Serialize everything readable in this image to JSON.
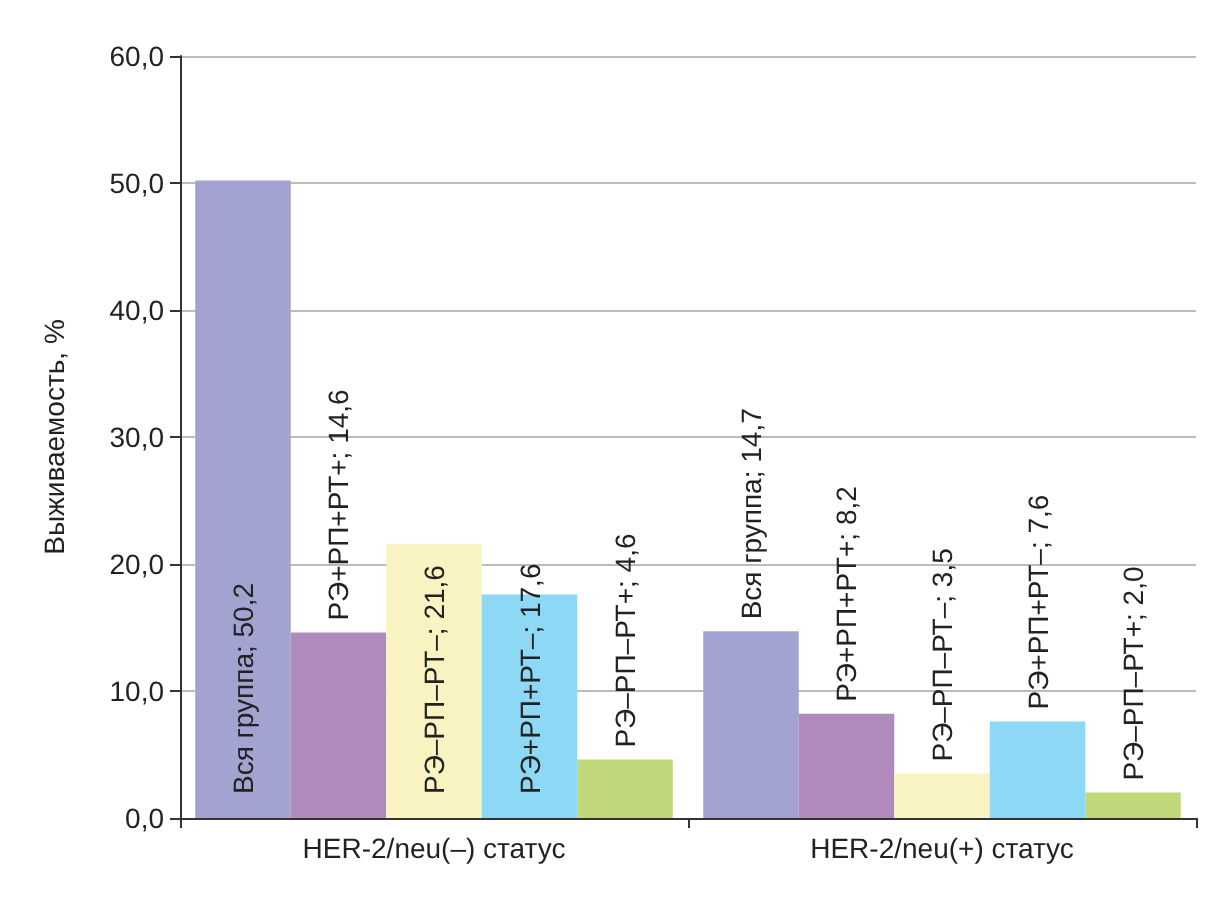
{
  "chart_data": {
    "type": "bar",
    "ylabel": "Выживаемость, %",
    "categories": [
      "HER-2/neu(–) статус",
      "HER-2/neu(+) статус"
    ],
    "series": [
      {
        "name": "Вся группа",
        "color": "#a3a3d2",
        "values": [
          50.2,
          14.7
        ],
        "value_labels": [
          "; 50,2",
          "; 14,7"
        ]
      },
      {
        "name": "РЭ+РП+РТ+",
        "color": "#b08abd",
        "values": [
          14.6,
          8.2
        ],
        "value_labels": [
          "; 14,6",
          "; 8,2"
        ]
      },
      {
        "name": "РЭ–РП–РТ–",
        "color": "#f8f3c0",
        "values": [
          21.6,
          3.5
        ],
        "value_labels": [
          "; 21,6",
          "; 3,5"
        ]
      },
      {
        "name": "РЭ+РП+РТ–",
        "color": "#8dd8f5",
        "values": [
          17.6,
          7.6
        ],
        "value_labels": [
          "; 17,6",
          "; 7,6"
        ]
      },
      {
        "name": "РЭ–РП–РТ+",
        "color": "#c0d77a",
        "values": [
          4.6,
          2.0
        ],
        "value_labels": [
          "; 4,6",
          "; 2,0"
        ]
      }
    ],
    "ylim": [
      0,
      60
    ],
    "yticks": [
      {
        "value": 0,
        "label": "0,0"
      },
      {
        "value": 10,
        "label": "10,0"
      },
      {
        "value": 20,
        "label": "20,0"
      },
      {
        "value": 30,
        "label": "30,0"
      },
      {
        "value": 40,
        "label": "40,0"
      },
      {
        "value": 50,
        "label": "50,0"
      },
      {
        "value": 60,
        "label": "60,0"
      }
    ],
    "grid": "y",
    "legend": false
  }
}
